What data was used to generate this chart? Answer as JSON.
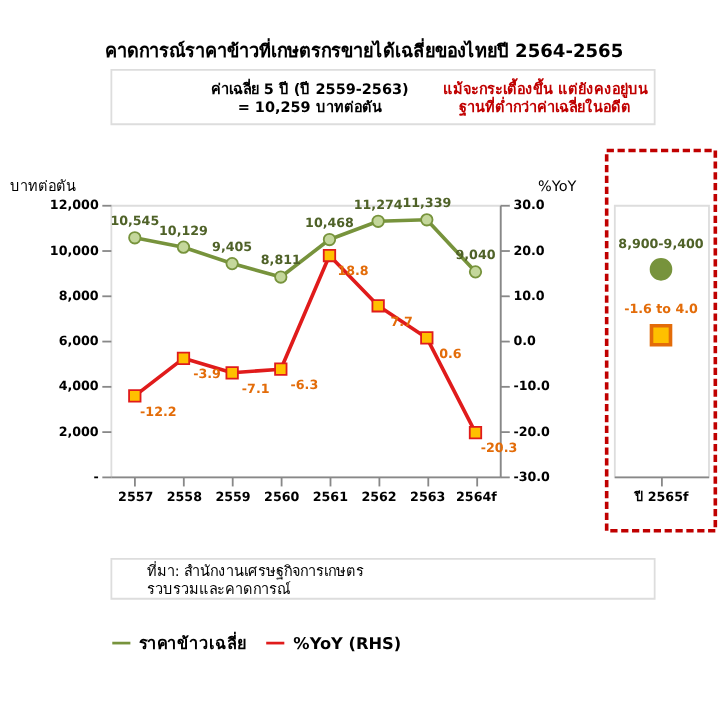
{
  "chart_data": [
    {
      "type": "line",
      "title": "คาดการณ์ราคาข้าวที่เกษตรกรขายได้เฉลี่ยของไทยปี 2564-2565",
      "annotations": [
        "ค่าเฉลี่ย 5 ปี (ปี 2559-2563)\n= 10,259 บาทต่อตัน",
        "แม้จะกระเตื้องขึ้น แต่ยังคงอยู่บน\nฐานที่ต่ำกว่าค่าเฉลี่ยในอดีต",
        "ที่มา: สำนักงานเศรษฐกิจการเกษตร\nรวบรวมและคาดการณ์"
      ],
      "ylabel": "บาทต่อตัน",
      "y2label": "%YoY",
      "categories": [
        "2557",
        "2558",
        "2559",
        "2560",
        "2561",
        "2562",
        "2563",
        "2564f"
      ],
      "series": [
        {
          "name": "ราคาข้าวเฉลี่ย",
          "color": "#77933c",
          "marker": "circle",
          "values": [
            10545,
            10129,
            9405,
            8811,
            10468,
            11274,
            11339,
            9040
          ],
          "value_labels": [
            "10,545",
            "10,129",
            "9,405",
            "8,811",
            "10,468",
            "11,274",
            "11,339",
            "9,040"
          ]
        },
        {
          "name": "%YoY (RHS)",
          "color": "#e01b1b",
          "marker": "square",
          "axis": "y2",
          "values": [
            -12.2,
            -3.9,
            -7.1,
            -6.3,
            18.8,
            7.7,
            0.6,
            -20.3
          ]
        }
      ],
      "ylim": [
        0,
        12000
      ],
      "yticks": [
        {
          "value": 0,
          "label": "-"
        },
        {
          "value": 2000,
          "label": "2,000"
        },
        {
          "value": 4000,
          "label": "4,000"
        },
        {
          "value": 6000,
          "label": "6,000"
        },
        {
          "value": 8000,
          "label": "8,000"
        },
        {
          "value": 10000,
          "label": "10,000"
        },
        {
          "value": 12000,
          "label": "12,000"
        }
      ],
      "y2lim": [
        -30,
        30
      ],
      "y2ticks": [
        {
          "value": -30,
          "label": "-30.0"
        },
        {
          "value": -20,
          "label": "-20.0"
        },
        {
          "value": -10,
          "label": "-10.0"
        },
        {
          "value": 0,
          "label": "0.0"
        },
        {
          "value": 10,
          "label": "10.0"
        },
        {
          "value": 20,
          "label": "20.0"
        },
        {
          "value": 30,
          "label": "30.0"
        }
      ],
      "data_labels": true,
      "grid": false,
      "legend": "bottom"
    },
    {
      "type": "scatter",
      "categories": [
        "ปี 2565f"
      ],
      "series": [
        {
          "color": "#77933c",
          "marker": "circle",
          "values": [
            9150
          ],
          "value_labels": [
            "8,900-9,400"
          ]
        },
        {
          "color": "#ffc000",
          "marker": "square",
          "axis": "y2",
          "values": [
            1.2
          ],
          "value_labels": [
            "-1.6 to 4.0"
          ]
        }
      ],
      "ylim": [
        0,
        12000
      ],
      "y2lim": [
        -30,
        30
      ],
      "tick_labels": "x"
    }
  ]
}
